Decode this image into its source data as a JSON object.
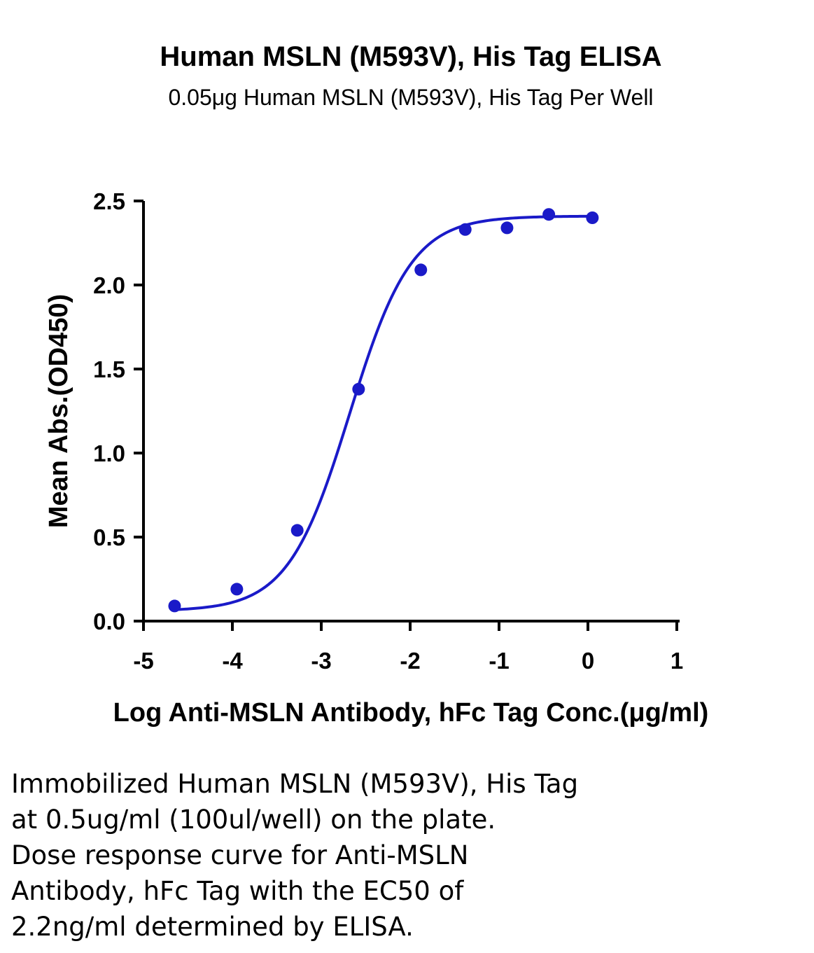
{
  "chart_data": {
    "type": "scatter",
    "title": "Human MSLN (M593V), His Tag ELISA",
    "subtitle": "0.05μg Human MSLN (M593V), His Tag Per Well",
    "xlabel": "Log Anti-MSLN Antibody, hFc Tag Conc.(μg/ml)",
    "ylabel": "Mean Abs.(OD450)",
    "xlim": [
      -5,
      1
    ],
    "ylim": [
      0,
      2.5
    ],
    "x_ticks": [
      "-5",
      "-4",
      "-3",
      "-2",
      "-1",
      "0",
      "1"
    ],
    "y_ticks": [
      "0.0",
      "0.5",
      "1.0",
      "1.5",
      "2.0",
      "2.5"
    ],
    "series": [
      {
        "x": [
          -4.65,
          -3.95,
          -3.27,
          -2.58,
          -1.88,
          -1.38,
          -0.91,
          -0.44,
          0.05
        ],
        "y": [
          0.09,
          0.19,
          0.54,
          1.38,
          2.09,
          2.33,
          2.34,
          2.42,
          2.4
        ],
        "color": "#1a1ac8",
        "marker": "circle",
        "fit": "4PL sigmoidal curve"
      }
    ],
    "grid": false,
    "legend": "none"
  },
  "caption": {
    "lines": [
      "Immobilized Human MSLN (M593V), His Tag",
      "at 0.5ug/ml (100ul/well) on the plate.",
      "Dose response curve for Anti-MSLN",
      "Antibody, hFc Tag with the EC50 of",
      "2.2ng/ml determined by ELISA."
    ]
  }
}
